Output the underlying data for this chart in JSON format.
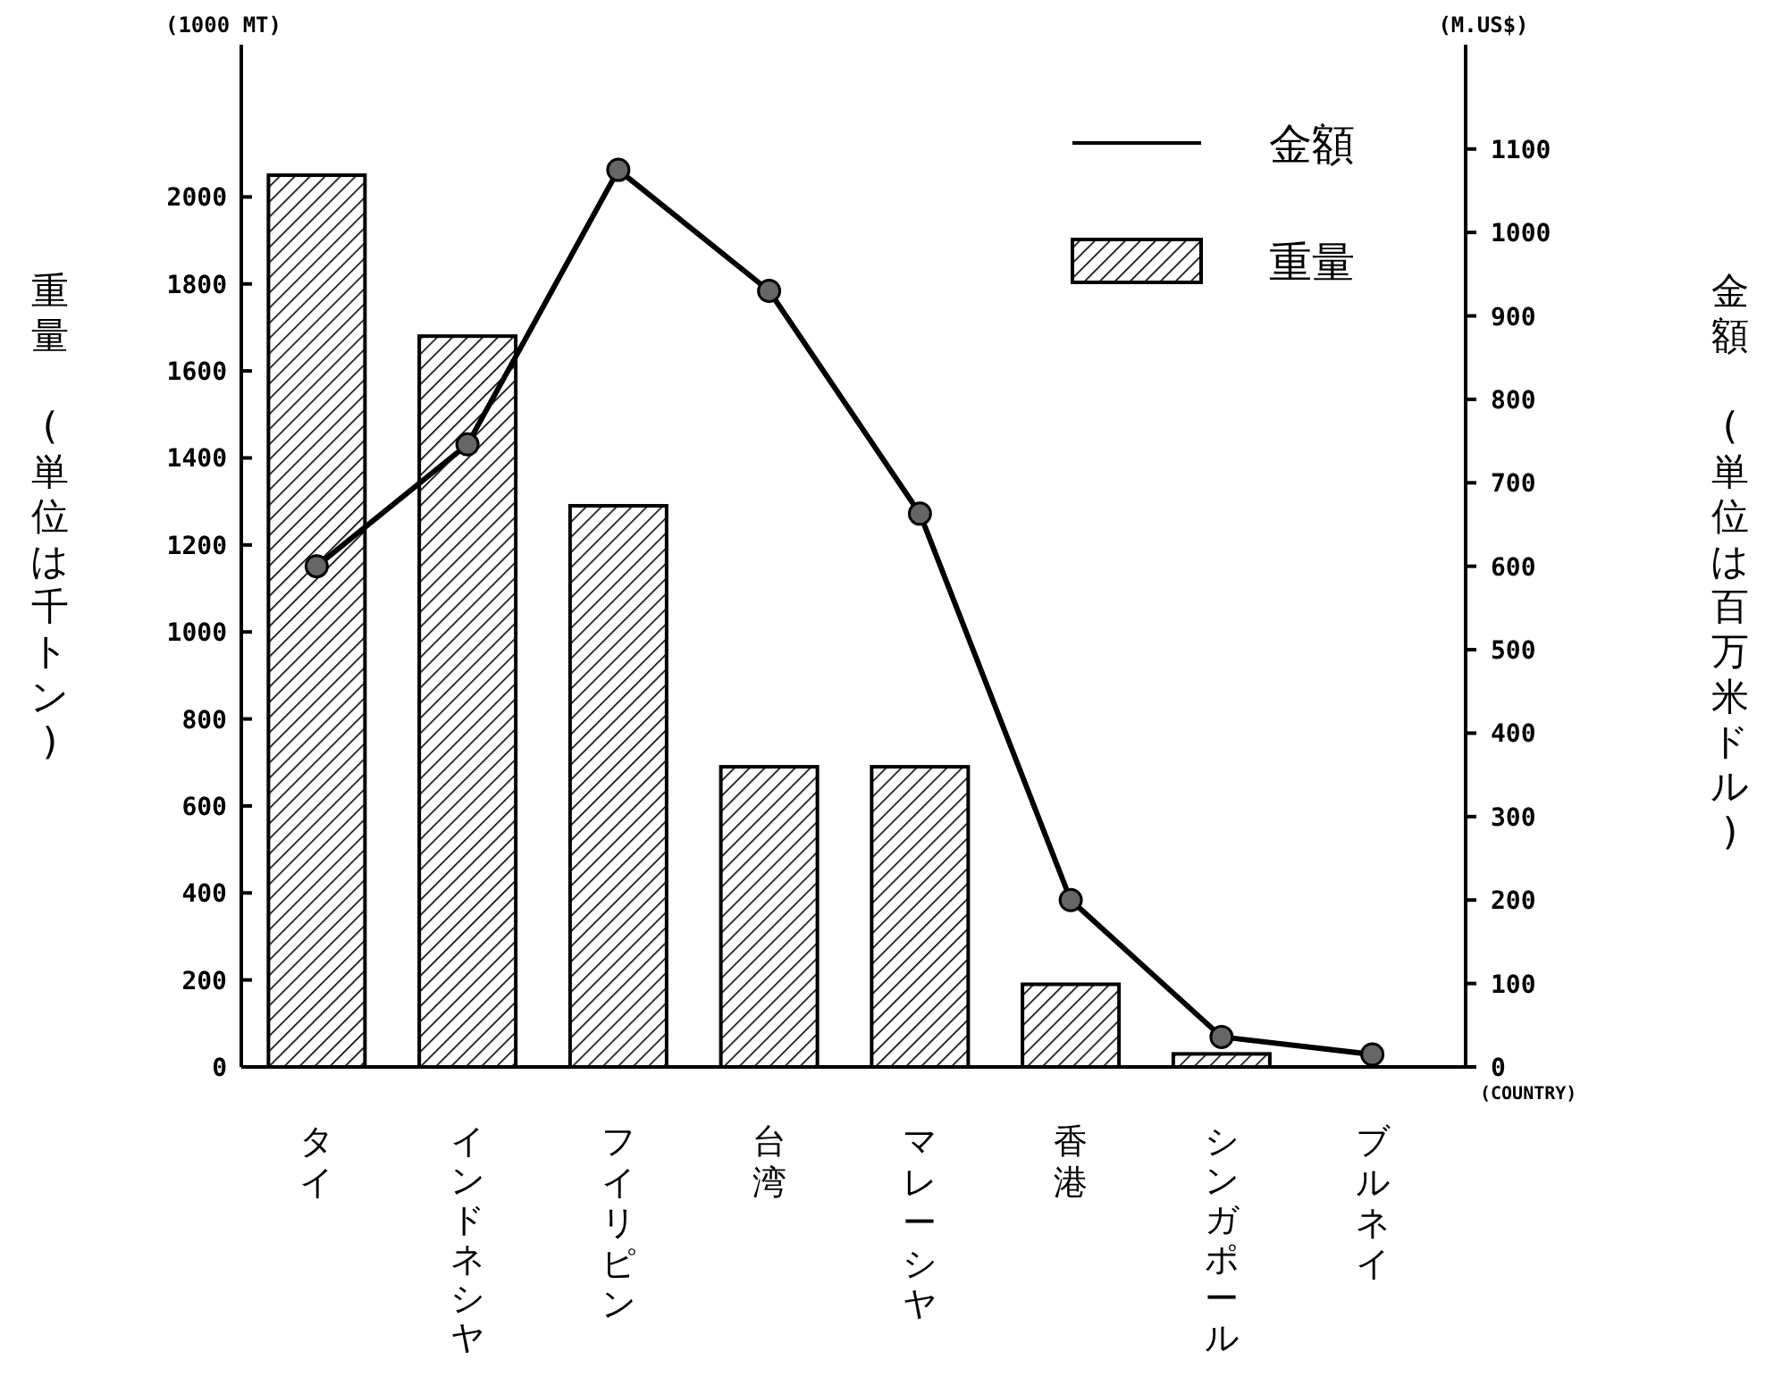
{
  "chart_data": {
    "type": "bar",
    "xlabel": "(COUNTRY)",
    "ylabel": "重量 (単位は千トン)",
    "y2label": "金額 (単位は百万米ドル)",
    "annotations": [
      "(1000 MT)",
      "(M.US$)"
    ],
    "categories": [
      "タイ",
      "インドネシヤ",
      "フイリピン",
      "台湾",
      "マレーシヤ",
      "香港",
      "シンガポール",
      "ブルネイ"
    ],
    "series": [
      {
        "name": "金額",
        "type": "line",
        "axis": "y2",
        "color": "#000000",
        "marker": "circle",
        "values": [
          600,
          746,
          1075,
          930,
          663,
          200,
          36,
          15
        ]
      },
      {
        "name": "重量",
        "color": "#000000",
        "values": [
          2050,
          1680,
          1290,
          690,
          690,
          190,
          30,
          0
        ]
      }
    ],
    "ylim": [
      0,
      2350
    ],
    "yticks": [
      0,
      200,
      400,
      600,
      800,
      1000,
      1200,
      1400,
      1600,
      1800,
      2000
    ],
    "y2lim": [
      0,
      1225
    ],
    "y2ticks": [
      0,
      100,
      200,
      300,
      400,
      500,
      600,
      700,
      800,
      900,
      1000,
      1100
    ],
    "legend": "top right"
  }
}
